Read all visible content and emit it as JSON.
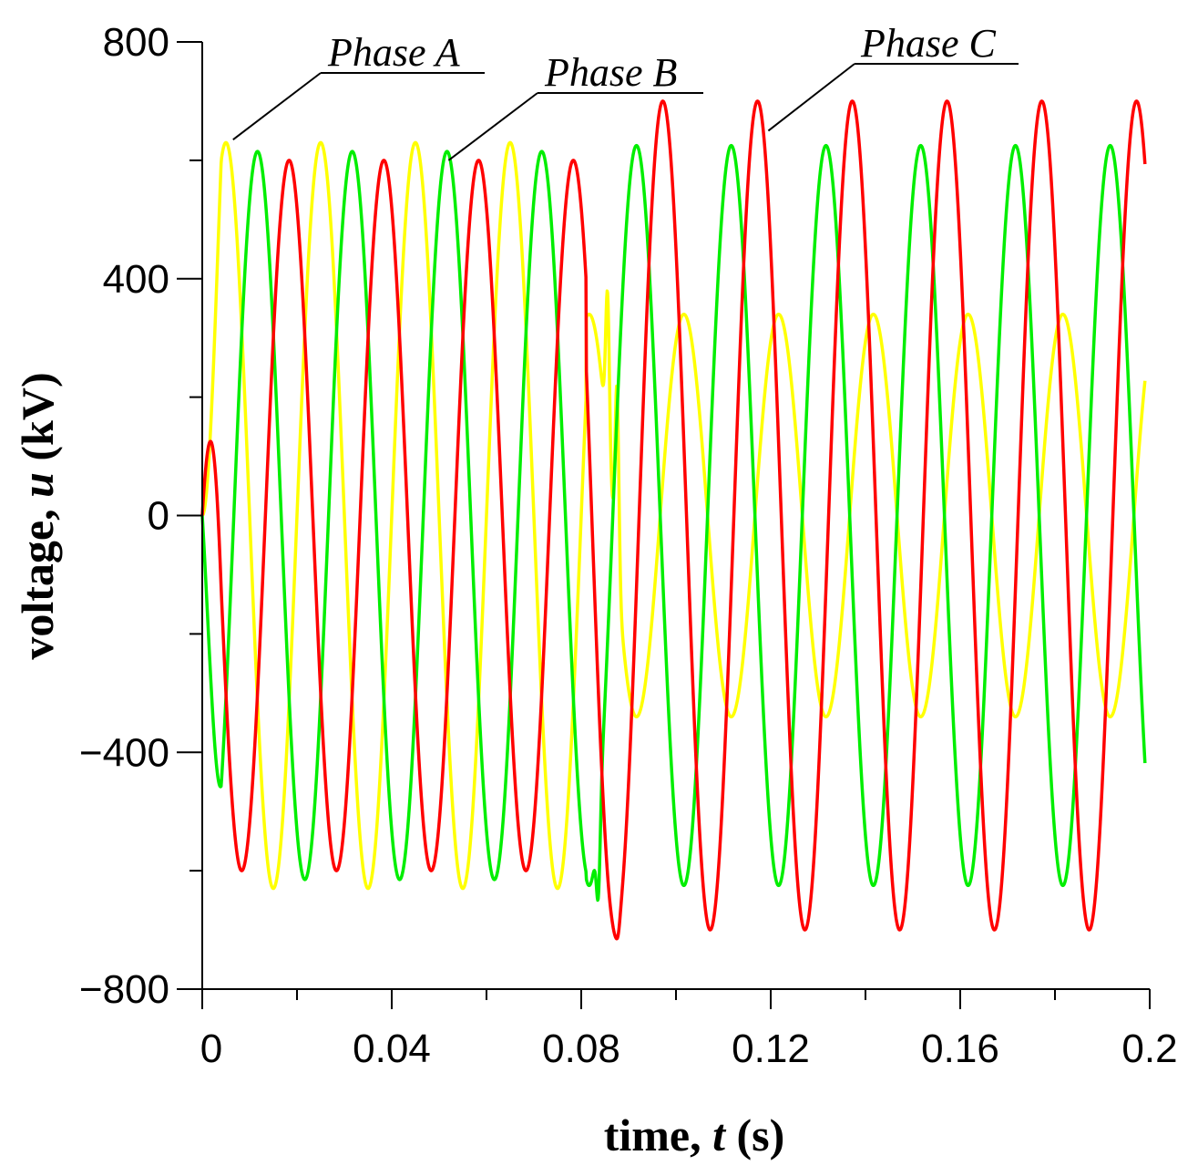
{
  "chart_data": {
    "type": "line",
    "title": "",
    "xlabel": {
      "prefix": "time, ",
      "var": "t",
      "unit": " (s)"
    },
    "ylabel": {
      "prefix": "voltage, ",
      "var": "u",
      "unit": " (kV)"
    },
    "xlim": [
      0,
      0.2
    ],
    "ylim": [
      -800,
      800
    ],
    "xticks": [
      0,
      0.04,
      0.08,
      0.12,
      0.16,
      0.2
    ],
    "xtick_labels": [
      "0",
      "0.04",
      "0.08",
      "0.12",
      "0.16",
      "0.2"
    ],
    "yticks": [
      800,
      400,
      0,
      -400,
      -800
    ],
    "ytick_labels": [
      "800",
      "400",
      "0",
      "−400",
      "−800"
    ],
    "grid": false,
    "series": [
      {
        "name": "Phase A",
        "color": "#ffff00",
        "fault_time": 0.081,
        "pre": {
          "amplitude": 630,
          "frequency": 50,
          "phase_deg": 0
        },
        "post": {
          "amplitude": 340,
          "frequency": 50,
          "phase_deg": 60
        },
        "events": [
          {
            "t": 0.0855,
            "u": 380
          },
          {
            "t": 0.0875,
            "u": 220
          }
        ]
      },
      {
        "name": "Phase B",
        "color": "#00ee00",
        "fault_time": 0.081,
        "pre": {
          "amplitude": 615,
          "frequency": 50,
          "phase_deg": -120
        },
        "post": {
          "amplitude": 625,
          "frequency": 50,
          "phase_deg": -120
        },
        "events": [
          {
            "t": 0.0835,
            "u": -650
          }
        ]
      },
      {
        "name": "Phase C",
        "color": "#ff0000",
        "fault_time": 0.081,
        "pre": {
          "amplitude": 600,
          "frequency": 50,
          "phase_deg": 120
        },
        "post": {
          "amplitude": 700,
          "frequency": 50,
          "phase_deg": 140
        },
        "events": [
          {
            "t": 0.0875,
            "u": -715
          }
        ]
      }
    ],
    "annotations": [
      {
        "text": "Phase A",
        "series": "Phase A",
        "point_t": 0.0065,
        "point_u": 635
      },
      {
        "text": "Phase B",
        "series": "Phase B",
        "point_t": 0.052,
        "point_u": 600
      },
      {
        "text": "Phase C",
        "series": "Phase C",
        "point_t": 0.1195,
        "point_u": 650
      }
    ]
  }
}
